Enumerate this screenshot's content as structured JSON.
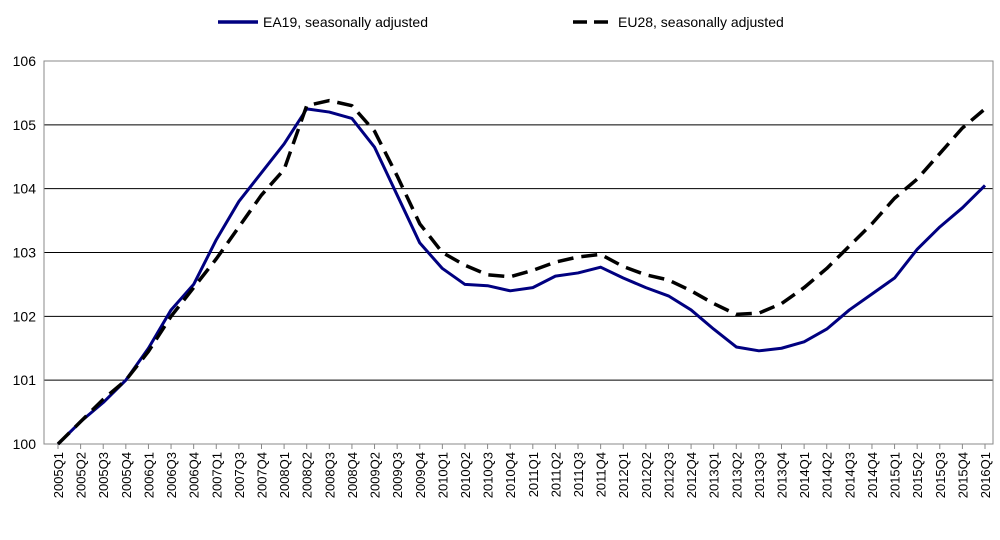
{
  "chart_data": {
    "type": "line",
    "categories": [
      "2005Q1",
      "2005Q2",
      "2005Q3",
      "2005Q4",
      "2006Q1",
      "2006Q3",
      "2006Q4",
      "2007Q1",
      "2007Q3",
      "2007Q4",
      "2008Q1",
      "2008Q2",
      "2008Q3",
      "2008Q4",
      "2009Q2",
      "2009Q3",
      "2009Q4",
      "2010Q1",
      "2010Q2",
      "2010Q3",
      "2010Q4",
      "2011Q1",
      "2011Q2",
      "2011Q3",
      "2011Q4",
      "2012Q1",
      "2012Q2",
      "2012Q3",
      "2012Q4",
      "2013Q1",
      "2013Q2",
      "2013Q3",
      "2013Q4",
      "2014Q1",
      "2014Q2",
      "2014Q3",
      "2014Q4",
      "2015Q1",
      "2015Q2",
      "2015Q3",
      "2015Q4",
      "2016Q1"
    ],
    "series": [
      {
        "name": "EA19, seasonally adjusted",
        "color": "#000080",
        "dash": false,
        "values": [
          100.0,
          100.35,
          100.65,
          101.0,
          101.5,
          102.1,
          102.5,
          103.2,
          103.8,
          104.25,
          104.7,
          105.25,
          105.2,
          105.1,
          104.65,
          103.9,
          103.15,
          102.75,
          102.5,
          102.48,
          102.4,
          102.45,
          102.63,
          102.68,
          102.77,
          102.6,
          102.45,
          102.32,
          102.1,
          101.8,
          101.52,
          101.46,
          101.5,
          101.6,
          101.8,
          102.1,
          102.35,
          102.6,
          103.05,
          103.4,
          103.7,
          104.05
        ]
      },
      {
        "name": "EU28, seasonally adjusted",
        "color": "#000000",
        "dash": true,
        "values": [
          100.0,
          100.35,
          100.7,
          101.0,
          101.45,
          102.0,
          102.45,
          102.9,
          103.4,
          103.9,
          104.3,
          105.3,
          105.38,
          105.3,
          104.9,
          104.2,
          103.45,
          103.0,
          102.8,
          102.65,
          102.62,
          102.72,
          102.85,
          102.93,
          102.97,
          102.78,
          102.65,
          102.57,
          102.4,
          102.2,
          102.03,
          102.05,
          102.2,
          102.45,
          102.75,
          103.1,
          103.45,
          103.85,
          104.15,
          104.55,
          104.95,
          105.25
        ]
      }
    ],
    "ylim": [
      100,
      106
    ],
    "yticks": [
      100,
      101,
      102,
      103,
      104,
      105,
      106
    ],
    "grid": true
  }
}
